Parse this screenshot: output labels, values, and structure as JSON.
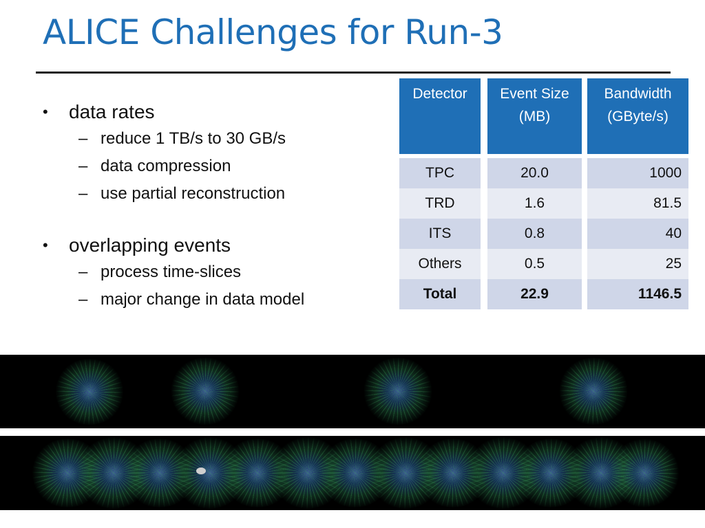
{
  "slide": {
    "title": "ALICE Challenges for Run-3"
  },
  "bullets": [
    {
      "text": "data rates",
      "sub": [
        "reduce 1 TB/s to 30 GB/s",
        "data compression",
        "use partial reconstruction"
      ]
    },
    {
      "text": "overlapping events",
      "sub": [
        "process time-slices",
        "major change in data model"
      ]
    }
  ],
  "bullet_symbol": "•",
  "dash_symbol": "–",
  "table": {
    "headers": [
      "Detector",
      "Event Size (MB)",
      "Bandwidth (GByte/s)"
    ],
    "rows": [
      [
        "TPC",
        "20.0",
        "1000"
      ],
      [
        "TRD",
        "1.6",
        "81.5"
      ],
      [
        "ITS",
        "0.8",
        "40"
      ],
      [
        "Others",
        "0.5",
        "25"
      ],
      [
        "Total",
        "22.9",
        "1146.5"
      ]
    ]
  },
  "colors": {
    "accent": "#1f6fb6",
    "row_dark": "#cfd6e8",
    "row_light": "#e8ebf3"
  }
}
